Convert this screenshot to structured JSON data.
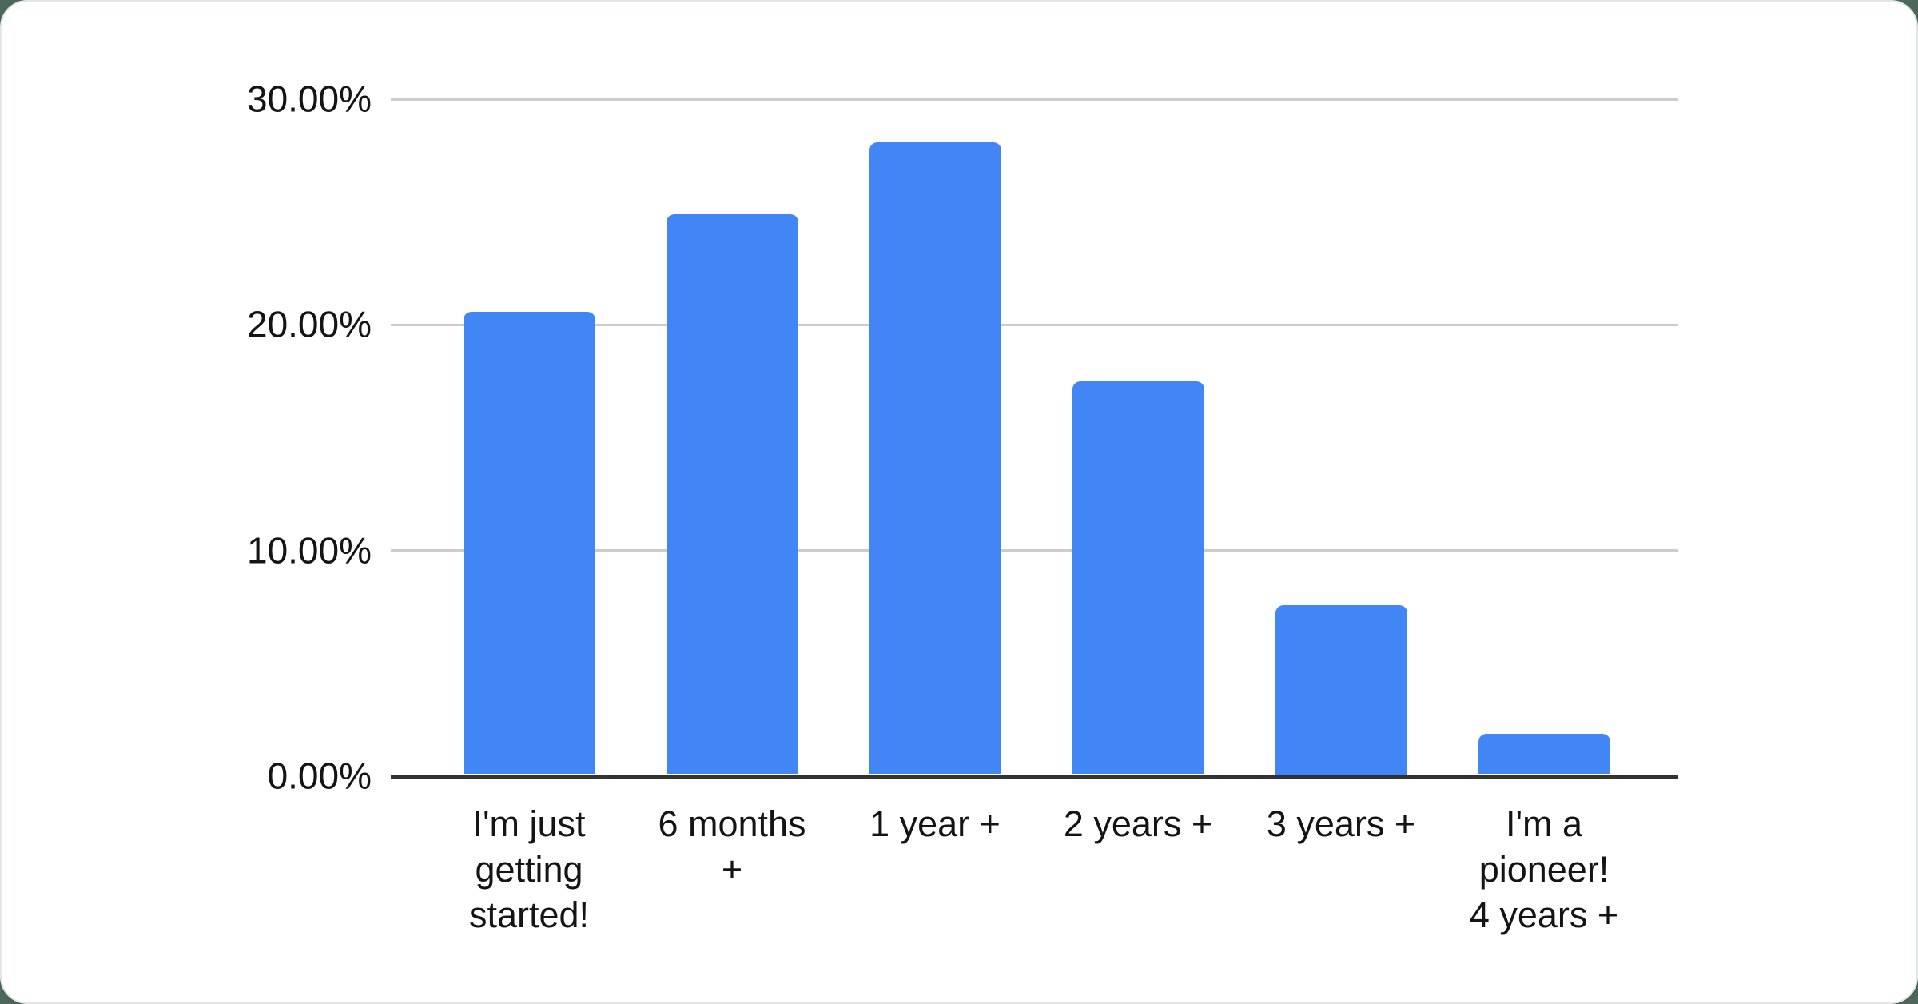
{
  "page": {
    "background_color": "#4c685a",
    "card_color": "#ffffff"
  },
  "chart_data": {
    "type": "bar",
    "title": "",
    "xlabel": "",
    "ylabel": "",
    "categories": [
      "I'm just getting started!",
      "6 months +",
      "1 year +",
      "2 years +",
      "3 years +",
      "I'm a pioneer! 4 years +"
    ],
    "category_label_lines": [
      [
        "I'm just",
        "getting",
        "started!"
      ],
      [
        "6 months",
        "+"
      ],
      [
        "1 year +"
      ],
      [
        "2 years +"
      ],
      [
        "3 years +"
      ],
      [
        "I'm a",
        "pioneer!",
        "4 years +"
      ]
    ],
    "values": [
      20.5,
      24.8,
      28.0,
      17.4,
      7.5,
      1.8
    ],
    "unit": "%",
    "ylim": [
      0,
      30
    ],
    "yticks": [
      {
        "value": 0,
        "label": "0.00%"
      },
      {
        "value": 10,
        "label": "10.00%"
      },
      {
        "value": 20,
        "label": "20.00%"
      },
      {
        "value": 30,
        "label": "30.00%"
      }
    ],
    "grid": true,
    "legend_position": "none",
    "bar_color": "#4285f4",
    "gridline_color": "#cccccc",
    "axis_line_color": "#333333",
    "label_color": "#141414"
  }
}
